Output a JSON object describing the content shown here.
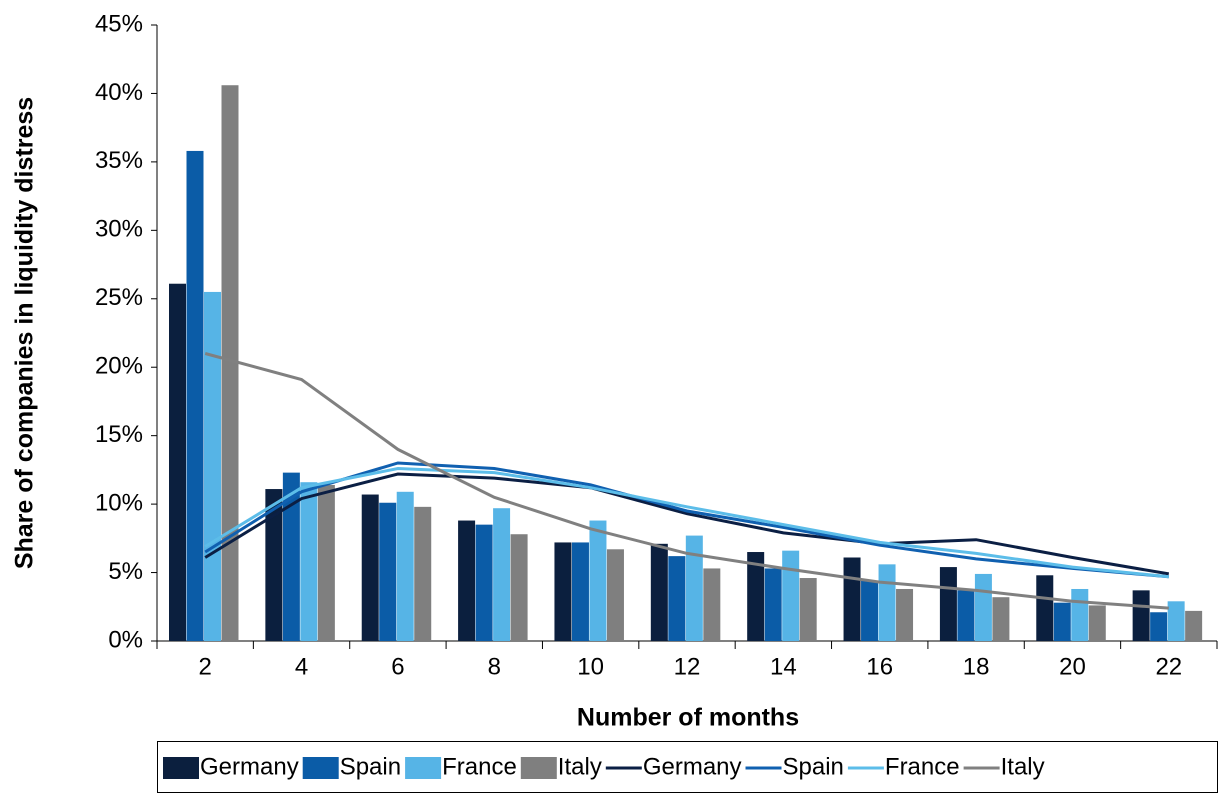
{
  "chart_data": {
    "type": "bar",
    "x_label": "Number of months",
    "y_label": "Share of companies in liquidity distress",
    "categories": [
      "2",
      "4",
      "6",
      "8",
      "10",
      "12",
      "14",
      "16",
      "18",
      "20",
      "22"
    ],
    "series": [
      {
        "name": "Germany",
        "type": "bar",
        "color": "#0b1f3e",
        "values": [
          26.1,
          11.1,
          10.7,
          8.8,
          7.2,
          7.1,
          6.5,
          6.1,
          5.4,
          4.8,
          3.7
        ]
      },
      {
        "name": "Spain",
        "type": "bar",
        "color": "#0b5ca7",
        "values": [
          35.8,
          12.3,
          10.1,
          8.5,
          7.2,
          6.2,
          5.3,
          4.4,
          3.7,
          2.8,
          2.1
        ]
      },
      {
        "name": "France",
        "type": "bar",
        "color": "#56b4e6",
        "values": [
          25.5,
          11.6,
          10.9,
          9.7,
          8.8,
          7.7,
          6.6,
          5.6,
          4.9,
          3.8,
          2.9
        ]
      },
      {
        "name": "Italy",
        "type": "bar",
        "color": "#7f7f7f",
        "values": [
          40.6,
          11.4,
          9.8,
          7.8,
          6.7,
          5.3,
          4.6,
          3.8,
          3.2,
          2.6,
          2.2
        ]
      },
      {
        "name": "Germany",
        "type": "line",
        "color": "#0b1f44",
        "values": [
          6.1,
          10.4,
          12.2,
          11.9,
          11.2,
          9.3,
          7.9,
          7.1,
          7.4,
          6.1,
          4.9
        ]
      },
      {
        "name": "Spain",
        "type": "line",
        "color": "#1060b0",
        "values": [
          6.5,
          10.9,
          13.0,
          12.6,
          11.4,
          9.5,
          8.3,
          7.0,
          6.0,
          5.3,
          4.7
        ]
      },
      {
        "name": "France",
        "type": "line",
        "color": "#5cbde9",
        "values": [
          6.9,
          11.2,
          12.6,
          12.3,
          11.2,
          9.8,
          8.5,
          7.2,
          6.4,
          5.4,
          4.7
        ]
      },
      {
        "name": "Italy",
        "type": "line",
        "color": "#808080",
        "values": [
          21.0,
          19.1,
          14.0,
          10.5,
          8.2,
          6.4,
          5.3,
          4.3,
          3.7,
          2.9,
          2.4
        ]
      }
    ],
    "ylim": [
      0,
      45
    ],
    "yticks": [
      {
        "value": 0,
        "label": "0%"
      },
      {
        "value": 5,
        "label": "5%"
      },
      {
        "value": 10,
        "label": "10%"
      },
      {
        "value": 15,
        "label": "15%"
      },
      {
        "value": 20,
        "label": "20%"
      },
      {
        "value": 25,
        "label": "25%"
      },
      {
        "value": 30,
        "label": "30%"
      },
      {
        "value": 35,
        "label": "35%"
      },
      {
        "value": 40,
        "label": "40%"
      },
      {
        "value": 45,
        "label": "45%"
      }
    ],
    "legend": "bottom"
  }
}
